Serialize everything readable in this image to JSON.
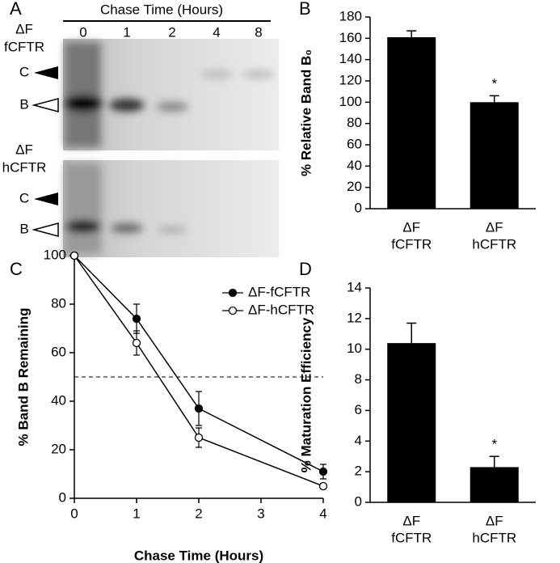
{
  "gel": {
    "panel": "A",
    "title": "Chase Time (Hours)",
    "lanes": [
      "0",
      "1",
      "2",
      "4",
      "8"
    ],
    "top_label": [
      "ΔF",
      "fCFTR"
    ],
    "bottom_label": [
      "ΔF",
      "hCFTR"
    ],
    "band_c": "C",
    "band_b": "B"
  },
  "chart_data": [
    {
      "type": "bar",
      "panel": "B",
      "ylabel": "% Relative Band B₀",
      "categories": [
        [
          "ΔF",
          "fCFTR"
        ],
        [
          "ΔF",
          "hCFTR"
        ]
      ],
      "values": [
        161,
        100
      ],
      "errors": [
        6,
        6
      ],
      "color": "#000000",
      "annotations": [
        "",
        "*"
      ],
      "ylim": [
        0,
        180
      ],
      "yticks": [
        0,
        20,
        40,
        60,
        80,
        100,
        120,
        140,
        160,
        180
      ]
    },
    {
      "type": "line",
      "panel": "C",
      "xlabel": "Chase Time (Hours)",
      "ylabel": "% Band B Remaining",
      "x": [
        0,
        1,
        2,
        4
      ],
      "series": [
        {
          "name": "ΔF-fCFTR",
          "color": "#000000",
          "marker": "filled",
          "values": [
            100,
            74,
            37,
            11
          ],
          "errors": [
            0,
            6,
            7,
            3
          ]
        },
        {
          "name": "ΔF-hCFTR",
          "color": "#000000",
          "marker": "open",
          "values": [
            100,
            64,
            25,
            5
          ],
          "errors": [
            0,
            5,
            4,
            1
          ]
        }
      ],
      "hline": 50,
      "legend": "upper right",
      "xlim": [
        0,
        4
      ],
      "xticks": [
        0,
        1,
        2,
        3,
        4
      ],
      "ylim": [
        0,
        100
      ],
      "yticks": [
        0,
        20,
        40,
        60,
        80,
        100
      ]
    },
    {
      "type": "bar",
      "panel": "D",
      "ylabel": "% Maturation Efficiency",
      "categories": [
        [
          "ΔF",
          "fCFTR"
        ],
        [
          "ΔF",
          "hCFTR"
        ]
      ],
      "values": [
        10.4,
        2.3
      ],
      "errors": [
        1.3,
        0.7
      ],
      "color": "#000000",
      "annotations": [
        "",
        "*"
      ],
      "ylim": [
        0,
        14
      ],
      "yticks": [
        0,
        2,
        4,
        6,
        8,
        10,
        12,
        14
      ]
    }
  ]
}
